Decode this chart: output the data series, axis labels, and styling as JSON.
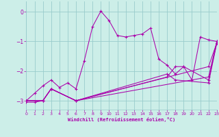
{
  "xlabel": "Windchill (Refroidissement éolien,°C)",
  "ylabel": "",
  "bg_color": "#cceee8",
  "line_color": "#aa00aa",
  "grid_color": "#99cccc",
  "xlim": [
    0,
    23
  ],
  "ylim": [
    -3.3,
    0.35
  ],
  "yticks": [
    0,
    -1,
    -2,
    -3
  ],
  "xticks": [
    0,
    1,
    2,
    3,
    4,
    5,
    6,
    7,
    8,
    9,
    10,
    11,
    12,
    13,
    14,
    15,
    16,
    17,
    18,
    19,
    20,
    21,
    22,
    23
  ],
  "series": [
    {
      "x": [
        0,
        1,
        2,
        3,
        4,
        5,
        6,
        7,
        8,
        9,
        10,
        11,
        12,
        13,
        14,
        15,
        16,
        17,
        18,
        19,
        20,
        21,
        22,
        23
      ],
      "y": [
        -3.0,
        -2.75,
        -2.5,
        -2.3,
        -2.55,
        -2.4,
        -2.6,
        -1.65,
        -0.5,
        0.02,
        -0.3,
        -0.8,
        -0.85,
        -0.8,
        -0.75,
        -0.55,
        -1.6,
        -1.8,
        -2.1,
        -1.85,
        -2.3,
        -0.85,
        -0.95,
        -1.0
      ]
    },
    {
      "x": [
        0,
        2,
        3,
        6,
        22,
        23
      ],
      "y": [
        -3.0,
        -3.0,
        -2.6,
        -3.0,
        -1.85,
        -1.05
      ]
    },
    {
      "x": [
        0,
        2,
        3,
        6,
        17,
        18,
        22,
        23
      ],
      "y": [
        -3.0,
        -3.0,
        -2.6,
        -3.0,
        -2.1,
        -2.3,
        -2.4,
        -1.05
      ]
    },
    {
      "x": [
        0,
        2,
        3,
        6,
        17,
        18,
        19,
        22,
        23
      ],
      "y": [
        -3.0,
        -3.0,
        -2.6,
        -3.0,
        -2.2,
        -1.85,
        -1.85,
        -2.3,
        -1.05
      ]
    },
    {
      "x": [
        0,
        1,
        2,
        3,
        6,
        22,
        23
      ],
      "y": [
        -3.05,
        -3.05,
        -3.0,
        -2.6,
        -3.0,
        -2.2,
        -1.0
      ]
    }
  ]
}
